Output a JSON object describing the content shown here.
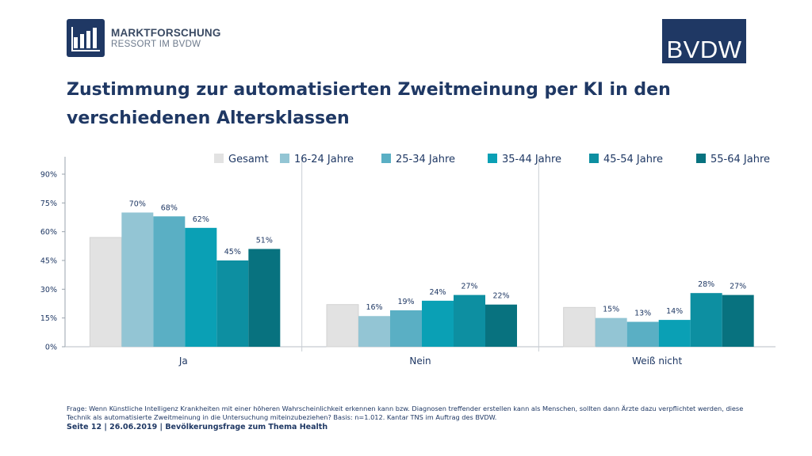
{
  "header": {
    "logo_left_line1": "MARKTFORSCHUNG",
    "logo_left_line2": "RESSORT IM BVDW",
    "logo_right_text": "BVDW",
    "brand_color": "#1f3864"
  },
  "title": "Zustimmung zur automatisierten Zweitmeinung per KI in den verschiedenen Altersklassen",
  "chart_data": {
    "type": "bar",
    "categories": [
      "Ja",
      "Nein",
      "Weiß nicht"
    ],
    "ylim": [
      0,
      90
    ],
    "yticks": [
      0,
      15,
      30,
      45,
      60,
      75,
      90
    ],
    "ytick_labels": [
      "0%",
      "15%",
      "30%",
      "45%",
      "60%",
      "75%",
      "90%"
    ],
    "legend_position": "top",
    "series": [
      {
        "name": "Gesamt",
        "color": "#e2e2e2",
        "values": [
          57,
          22,
          20.5
        ],
        "labels": [
          "",
          "",
          ""
        ]
      },
      {
        "name": "16-24 Jahre",
        "color": "#93c5d4",
        "values": [
          70,
          16,
          15
        ],
        "labels": [
          "70%",
          "16%",
          "15%"
        ]
      },
      {
        "name": "25-34 Jahre",
        "color": "#5aafc4",
        "values": [
          68,
          19,
          13
        ],
        "labels": [
          "68%",
          "19%",
          "13%"
        ]
      },
      {
        "name": "35-44 Jahre",
        "color": "#0aa0b5",
        "values": [
          62,
          24,
          14
        ],
        "labels": [
          "62%",
          "24%",
          "14%"
        ]
      },
      {
        "name": "45-54 Jahre",
        "color": "#0d8fa1",
        "values": [
          45,
          27,
          28
        ],
        "labels": [
          "45%",
          "27%",
          "28%"
        ]
      },
      {
        "name": "55-64 Jahre",
        "color": "#08727f",
        "values": [
          51,
          22,
          27
        ],
        "labels": [
          "51%",
          "22%",
          "27%"
        ]
      }
    ]
  },
  "footnote": "Frage: Wenn Künstliche Intelligenz Krankheiten mit einer höheren Wahrscheinlichkeit erkennen kann bzw. Diagnosen treffender erstellen kann als Menschen, sollten dann Ärzte dazu verpflichtet werden, diese Technik als automatisierte Zweitmeinung in die Untersuchung miteinzubeziehen? Basis: n=1.012. Kantar TNS im Auftrag des BVDW.",
  "footer": "Seite 12 | 26.06.2019 | Bevölkerungsfrage zum Thema Health"
}
